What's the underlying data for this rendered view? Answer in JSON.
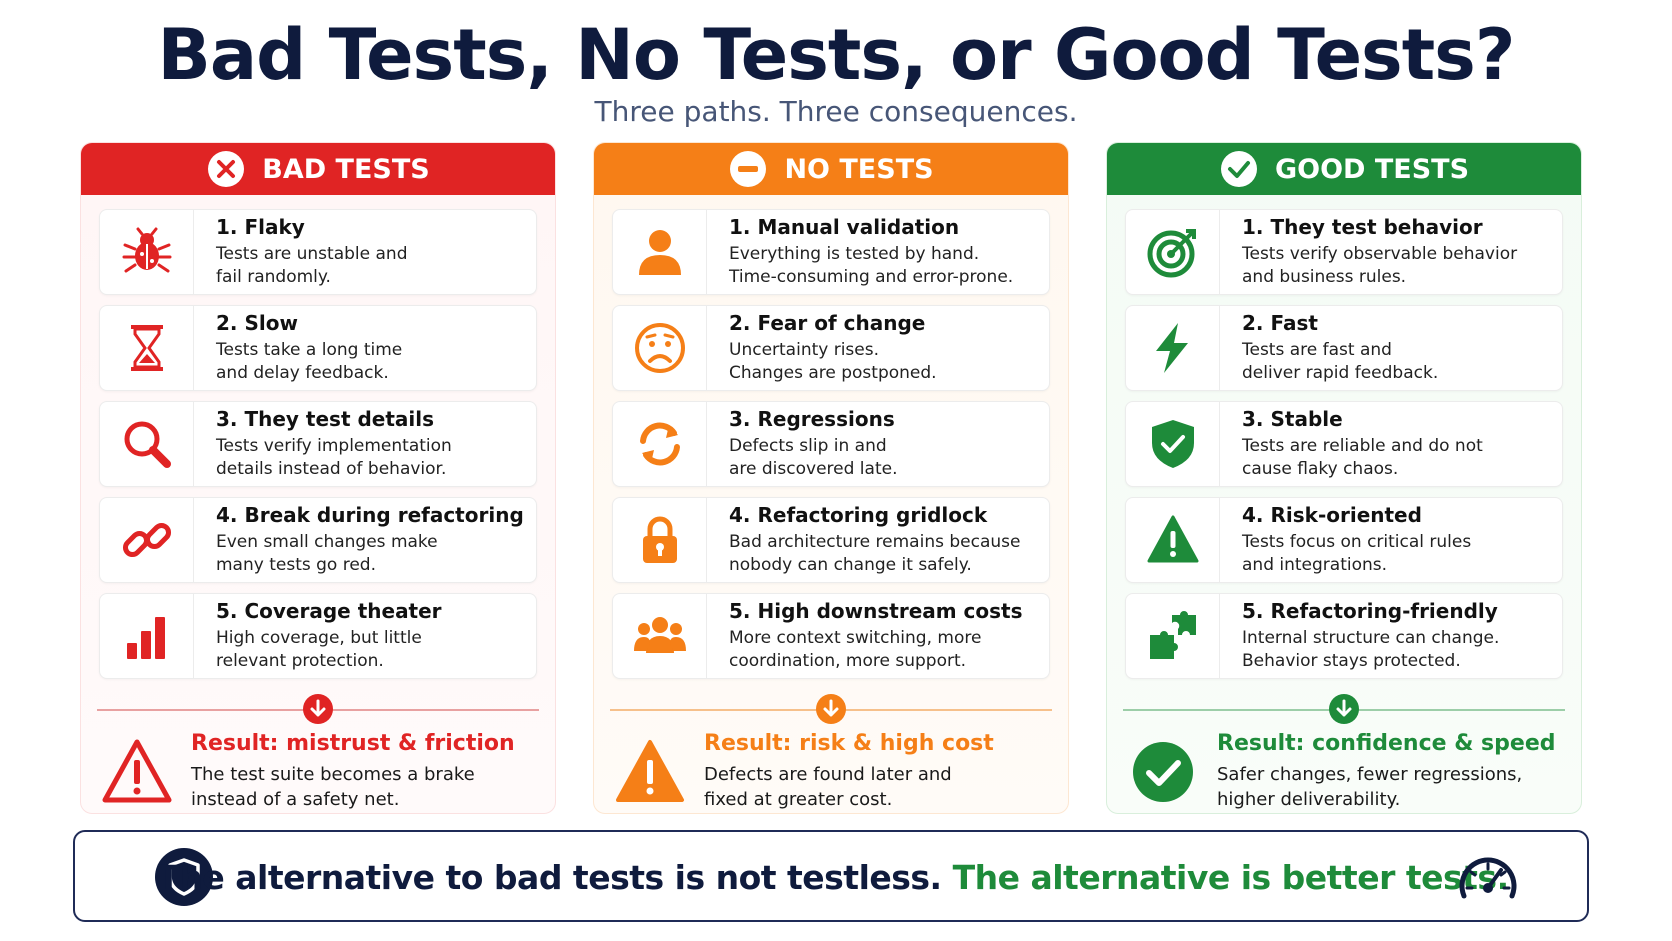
{
  "title": "Bad Tests, No Tests, or Good Tests?",
  "subtitle": "Three paths. Three consequences.",
  "colors": {
    "bad": "#e02424",
    "no": "#f57f17",
    "good": "#1e8b3a",
    "navy": "#0f1b3d"
  },
  "columns": [
    {
      "key": "bad",
      "header": "BAD TESTS",
      "header_icon": "x-circle-icon",
      "items": [
        {
          "icon": "bug-icon",
          "title": "1. Flaky",
          "desc": "Tests are unstable and\nfail randomly."
        },
        {
          "icon": "hourglass-icon",
          "title": "2. Slow",
          "desc": "Tests take a long time\nand delay feedback."
        },
        {
          "icon": "magnifier-icon",
          "title": "3. They test details",
          "desc": "Tests verify implementation\ndetails instead of behavior."
        },
        {
          "icon": "broken-link-icon",
          "title": "4. Break during refactoring",
          "desc": "Even small changes make\nmany tests go red."
        },
        {
          "icon": "bar-chart-icon",
          "title": "5. Coverage theater",
          "desc": "High coverage, but little\nrelevant protection."
        }
      ],
      "result": {
        "icon": "warning-outline-icon",
        "title": "Result: mistrust & friction",
        "desc": "The test suite becomes a brake\ninstead of a safety net."
      }
    },
    {
      "key": "no",
      "header": "NO TESTS",
      "header_icon": "minus-circle-icon",
      "items": [
        {
          "icon": "person-icon",
          "title": "1. Manual validation",
          "desc": "Everything is tested by hand.\nTime-consuming and error-prone."
        },
        {
          "icon": "worried-face-icon",
          "title": "2. Fear of change",
          "desc": "Uncertainty rises.\nChanges are postponed."
        },
        {
          "icon": "refresh-icon",
          "title": "3. Regressions",
          "desc": "Defects slip in and\nare discovered late."
        },
        {
          "icon": "padlock-icon",
          "title": "4. Refactoring gridlock",
          "desc": "Bad architecture remains because\nnobody can change it safely."
        },
        {
          "icon": "group-icon",
          "title": "5. High downstream costs",
          "desc": "More context switching, more\ncoordination, more support."
        }
      ],
      "result": {
        "icon": "warning-filled-icon",
        "title": "Result: risk & high cost",
        "desc": "Defects are found later and\nfixed at greater cost."
      }
    },
    {
      "key": "good",
      "header": "GOOD TESTS",
      "header_icon": "check-circle-icon",
      "items": [
        {
          "icon": "target-icon",
          "title": "1. They test behavior",
          "desc": "Tests verify observable behavior\nand business rules."
        },
        {
          "icon": "lightning-icon",
          "title": "2. Fast",
          "desc": "Tests are fast and\ndeliver rapid feedback."
        },
        {
          "icon": "shield-check-icon",
          "title": "3. Stable",
          "desc": "Tests are reliable and do not\ncause flaky chaos."
        },
        {
          "icon": "alert-triangle-icon",
          "title": "4. Risk-oriented",
          "desc": "Tests focus on critical rules\nand integrations."
        },
        {
          "icon": "puzzle-icon",
          "title": "5. Refactoring-friendly",
          "desc": "Internal structure can change.\nBehavior stays protected."
        }
      ],
      "result": {
        "icon": "check-filled-icon",
        "title": "Result: confidence & speed",
        "desc": "Safer changes, fewer regressions,\nhigher deliverability."
      }
    }
  ],
  "banner": {
    "part1": "The alternative to bad tests is not testless.",
    "part2": "The alternative is better tests.",
    "left_icon": "shield-icon",
    "right_icon": "speedometer-icon"
  }
}
